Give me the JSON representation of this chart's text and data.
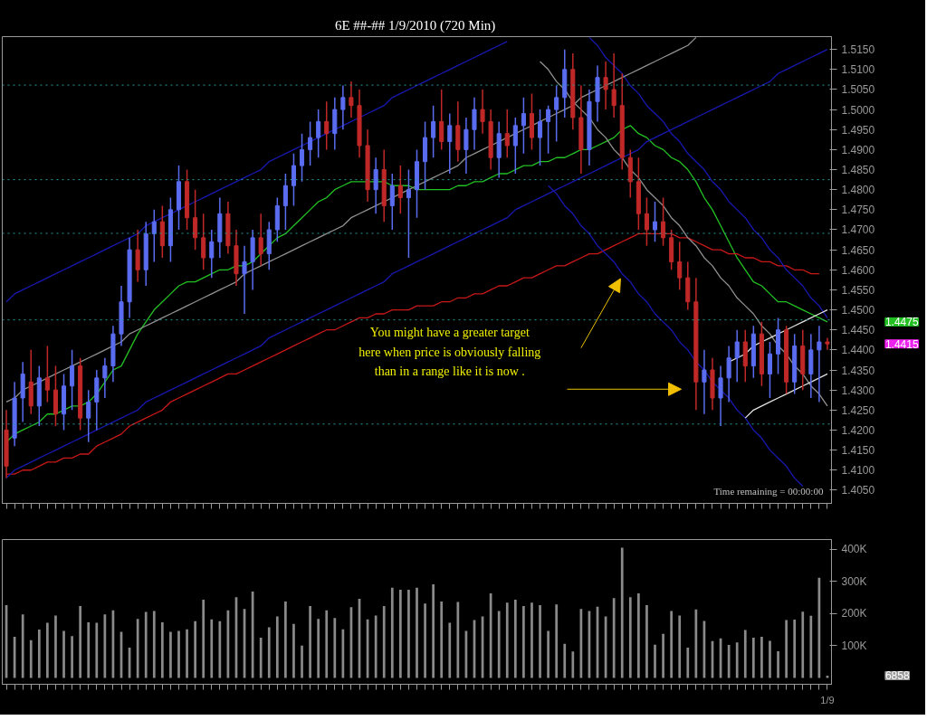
{
  "chart_data": [
    {
      "type": "candlestick",
      "title": "6E ##-##  1/9/2010 (720 Min)",
      "tick_labels": "y",
      "categories": [
        null,
        null,
        null,
        null,
        null,
        null,
        null,
        null,
        null,
        null,
        null,
        null,
        null,
        null,
        null,
        null,
        null,
        null,
        null,
        null,
        null,
        null,
        null,
        null,
        null,
        null,
        null,
        null,
        null,
        null,
        null,
        null,
        null,
        null,
        null,
        null,
        null,
        null,
        null,
        null,
        null,
        null,
        null,
        null,
        null,
        null,
        null,
        null,
        null,
        null,
        null,
        null,
        null,
        null,
        null,
        null,
        null,
        null,
        null,
        null,
        null,
        null,
        null,
        null,
        null,
        null,
        null,
        null,
        null,
        null,
        null,
        null,
        null,
        null,
        null,
        null,
        null,
        null,
        null,
        null,
        null,
        null,
        null,
        null,
        null,
        null,
        null,
        null,
        null,
        null,
        null,
        null,
        null,
        null,
        null,
        null,
        null,
        null,
        null,
        null,
        null
      ],
      "ohlc": [
        [
          1.42,
          1.425,
          1.408,
          1.411
        ],
        [
          1.418,
          1.432,
          1.416,
          1.428
        ],
        [
          1.428,
          1.437,
          1.422,
          1.434
        ],
        [
          1.432,
          1.44,
          1.424,
          1.426
        ],
        [
          1.426,
          1.436,
          1.421,
          1.433
        ],
        [
          1.433,
          1.441,
          1.427,
          1.43
        ],
        [
          1.43,
          1.436,
          1.421,
          1.424
        ],
        [
          1.424,
          1.434,
          1.42,
          1.431
        ],
        [
          1.431,
          1.44,
          1.425,
          1.436
        ],
        [
          1.436,
          1.438,
          1.42,
          1.423
        ],
        [
          1.423,
          1.43,
          1.417,
          1.427
        ],
        [
          1.427,
          1.435,
          1.42,
          1.433
        ],
        [
          1.433,
          1.438,
          1.428,
          1.436
        ],
        [
          1.436,
          1.446,
          1.432,
          1.444
        ],
        [
          1.444,
          1.456,
          1.441,
          1.452
        ],
        [
          1.452,
          1.468,
          1.448,
          1.465
        ],
        [
          1.465,
          1.47,
          1.457,
          1.46
        ],
        [
          1.46,
          1.472,
          1.456,
          1.469
        ],
        [
          1.469,
          1.475,
          1.462,
          1.472
        ],
        [
          1.472,
          1.476,
          1.463,
          1.466
        ],
        [
          1.466,
          1.478,
          1.462,
          1.475
        ],
        [
          1.475,
          1.486,
          1.47,
          1.482
        ],
        [
          1.482,
          1.485,
          1.47,
          1.473
        ],
        [
          1.473,
          1.48,
          1.465,
          1.468
        ],
        [
          1.468,
          1.474,
          1.46,
          1.463
        ],
        [
          1.463,
          1.47,
          1.458,
          1.467
        ],
        [
          1.467,
          1.478,
          1.463,
          1.474
        ],
        [
          1.474,
          1.477,
          1.464,
          1.466
        ],
        [
          1.466,
          1.47,
          1.456,
          1.459
        ],
        [
          1.459,
          1.466,
          1.449,
          1.462
        ],
        [
          1.462,
          1.47,
          1.455,
          1.468
        ],
        [
          1.468,
          1.474,
          1.461,
          1.464
        ],
        [
          1.464,
          1.472,
          1.46,
          1.47
        ],
        [
          1.47,
          1.478,
          1.467,
          1.476
        ],
        [
          1.476,
          1.484,
          1.47,
          1.481
        ],
        [
          1.481,
          1.489,
          1.476,
          1.486
        ],
        [
          1.486,
          1.494,
          1.482,
          1.49
        ],
        [
          1.49,
          1.497,
          1.486,
          1.493
        ],
        [
          1.493,
          1.5,
          1.488,
          1.497
        ],
        [
          1.497,
          1.502,
          1.49,
          1.494
        ],
        [
          1.494,
          1.503,
          1.49,
          1.5
        ],
        [
          1.5,
          1.506,
          1.495,
          1.503
        ],
        [
          1.503,
          1.507,
          1.498,
          1.501
        ],
        [
          1.501,
          1.505,
          1.488,
          1.491
        ],
        [
          1.491,
          1.495,
          1.477,
          1.48
        ],
        [
          1.48,
          1.488,
          1.474,
          1.485
        ],
        [
          1.485,
          1.49,
          1.472,
          1.476
        ],
        [
          1.476,
          1.484,
          1.47,
          1.481
        ],
        [
          1.481,
          1.486,
          1.474,
          1.478
        ],
        [
          1.478,
          1.485,
          1.463,
          1.48
        ],
        [
          1.48,
          1.49,
          1.473,
          1.487
        ],
        [
          1.487,
          1.497,
          1.48,
          1.493
        ],
        [
          1.493,
          1.501,
          1.488,
          1.497
        ],
        [
          1.497,
          1.505,
          1.49,
          1.492
        ],
        [
          1.492,
          1.499,
          1.484,
          1.496
        ],
        [
          1.496,
          1.502,
          1.487,
          1.49
        ],
        [
          1.49,
          1.498,
          1.484,
          1.495
        ],
        [
          1.495,
          1.503,
          1.49,
          1.5
        ],
        [
          1.5,
          1.505,
          1.494,
          1.497
        ],
        [
          1.497,
          1.5,
          1.485,
          1.488
        ],
        [
          1.488,
          1.497,
          1.483,
          1.494
        ],
        [
          1.494,
          1.5,
          1.488,
          1.491
        ],
        [
          1.491,
          1.498,
          1.484,
          1.496
        ],
        [
          1.496,
          1.503,
          1.489,
          1.499
        ],
        [
          1.499,
          1.504,
          1.49,
          1.493
        ],
        [
          1.493,
          1.5,
          1.486,
          1.497
        ],
        [
          1.497,
          1.501,
          1.489,
          1.5
        ],
        [
          1.5,
          1.506,
          1.492,
          1.503
        ],
        [
          1.503,
          1.515,
          1.498,
          1.51
        ],
        [
          1.51,
          1.514,
          1.495,
          1.498
        ],
        [
          1.498,
          1.506,
          1.484,
          1.49
        ],
        [
          1.49,
          1.505,
          1.486,
          1.502
        ],
        [
          1.502,
          1.511,
          1.497,
          1.508
        ],
        [
          1.508,
          1.512,
          1.5,
          1.505
        ],
        [
          1.505,
          1.514,
          1.498,
          1.501
        ],
        [
          1.501,
          1.509,
          1.485,
          1.488
        ],
        [
          1.488,
          1.49,
          1.478,
          1.482
        ],
        [
          1.482,
          1.488,
          1.47,
          1.474
        ],
        [
          1.474,
          1.478,
          1.466,
          1.47
        ],
        [
          1.47,
          1.477,
          1.467,
          1.472
        ],
        [
          1.472,
          1.478,
          1.466,
          1.468
        ],
        [
          1.468,
          1.47,
          1.46,
          1.462
        ],
        [
          1.462,
          1.467,
          1.455,
          1.458
        ],
        [
          1.458,
          1.462,
          1.45,
          1.452
        ],
        [
          1.452,
          1.458,
          1.425,
          1.432
        ],
        [
          1.432,
          1.44,
          1.424,
          1.435
        ],
        [
          1.435,
          1.438,
          1.425,
          1.428
        ],
        [
          1.428,
          1.436,
          1.421,
          1.433
        ],
        [
          1.433,
          1.441,
          1.427,
          1.438
        ],
        [
          1.438,
          1.445,
          1.432,
          1.442
        ],
        [
          1.442,
          1.445,
          1.432,
          1.436
        ],
        [
          1.436,
          1.446,
          1.433,
          1.444
        ],
        [
          1.444,
          1.447,
          1.431,
          1.434
        ],
        [
          1.434,
          1.442,
          1.428,
          1.439
        ],
        [
          1.439,
          1.448,
          1.434,
          1.445
        ],
        [
          1.445,
          1.446,
          1.429,
          1.432
        ],
        [
          1.432,
          1.444,
          1.429,
          1.441
        ],
        [
          1.441,
          1.445,
          1.43,
          1.434
        ],
        [
          1.434,
          1.444,
          1.428,
          1.44
        ],
        [
          1.44,
          1.446,
          1.427,
          1.442
        ],
        [
          1.442,
          1.443,
          1.44,
          1.4415
        ]
      ],
      "series": [
        {
          "type": "line",
          "color": "#22c022",
          "values": [
            1.417,
            1.419,
            1.42,
            1.421,
            1.422,
            1.424,
            1.424,
            1.425,
            1.426,
            1.426,
            1.427,
            1.429,
            1.432,
            1.435,
            1.436,
            1.44,
            1.444,
            1.447,
            1.45,
            1.452,
            1.454,
            1.456,
            1.457,
            1.457,
            1.458,
            1.459,
            1.46,
            1.46,
            1.461,
            1.461,
            1.462,
            1.464,
            1.466,
            1.468,
            1.469,
            1.471,
            1.473,
            1.475,
            1.477,
            1.478,
            1.48,
            1.481,
            1.482,
            1.482,
            1.482,
            1.482,
            1.482,
            1.481,
            1.481,
            1.481,
            1.48,
            1.48,
            1.48,
            1.48,
            1.48,
            1.481,
            1.481,
            1.482,
            1.482,
            1.483,
            1.484,
            1.484,
            1.485,
            1.486,
            1.486,
            1.487,
            1.487,
            1.488,
            1.488,
            1.489,
            1.49,
            1.49,
            1.491,
            1.492,
            1.493,
            1.495,
            1.496,
            1.494,
            1.493,
            1.491,
            1.49,
            1.488,
            1.487,
            1.485,
            1.482,
            1.478,
            1.475,
            1.471,
            1.467,
            1.463,
            1.46,
            1.457,
            1.456,
            1.454,
            1.452,
            1.452,
            1.451,
            1.45,
            1.449,
            1.448,
            1.447
          ]
        },
        {
          "type": "line",
          "color": "#c81818",
          "values": [
            1.409,
            1.409,
            1.41,
            1.41,
            1.411,
            1.412,
            1.412,
            1.413,
            1.413,
            1.414,
            1.414,
            1.416,
            1.417,
            1.418,
            1.419,
            1.421,
            1.422,
            1.423,
            1.424,
            1.425,
            1.427,
            1.428,
            1.429,
            1.43,
            1.431,
            1.432,
            1.433,
            1.434,
            1.434,
            1.435,
            1.436,
            1.437,
            1.438,
            1.439,
            1.44,
            1.441,
            1.442,
            1.443,
            1.444,
            1.445,
            1.445,
            1.446,
            1.447,
            1.448,
            1.448,
            1.449,
            1.449,
            1.45,
            1.45,
            1.45,
            1.451,
            1.451,
            1.451,
            1.452,
            1.452,
            1.453,
            1.453,
            1.454,
            1.454,
            1.455,
            1.456,
            1.456,
            1.457,
            1.458,
            1.458,
            1.459,
            1.46,
            1.461,
            1.461,
            1.462,
            1.463,
            1.464,
            1.464,
            1.465,
            1.466,
            1.467,
            1.468,
            1.469,
            1.469,
            1.469,
            1.469,
            1.469,
            1.468,
            1.468,
            1.467,
            1.466,
            1.465,
            1.465,
            1.464,
            1.464,
            1.463,
            1.463,
            1.462,
            1.462,
            1.461,
            1.461,
            1.46,
            1.46,
            1.459,
            1.459,
            null
          ]
        },
        {
          "type": "line",
          "color": "#1818b0",
          "values": [
            1.452,
            1.454,
            1.455,
            1.456,
            1.457,
            1.458,
            1.459,
            1.46,
            1.461,
            1.462,
            1.463,
            1.464,
            1.465,
            1.466,
            1.467,
            1.468,
            1.469,
            1.471,
            1.472,
            1.473,
            1.474,
            1.475,
            1.476,
            1.477,
            1.478,
            1.479,
            1.48,
            1.481,
            1.482,
            1.483,
            1.484,
            1.485,
            1.487,
            1.488,
            1.489,
            1.49,
            1.491,
            1.492,
            1.493,
            1.494,
            1.495,
            1.496,
            1.497,
            1.498,
            1.499,
            1.5,
            1.501,
            1.503,
            1.504,
            1.505,
            1.506,
            1.507,
            1.508,
            1.509,
            1.51,
            1.511,
            1.512,
            1.513,
            1.514,
            1.515,
            1.516,
            1.517,
            null,
            null,
            null,
            null,
            null,
            null,
            null,
            null,
            null,
            null,
            null,
            null,
            null,
            null,
            null,
            null,
            null,
            null,
            null,
            null,
            null,
            null,
            null,
            null,
            null,
            null,
            null,
            null,
            null,
            null,
            null,
            null,
            null,
            null,
            null,
            null,
            null,
            null,
            null
          ]
        },
        {
          "type": "line",
          "color": "#1818b0",
          "values": [
            1.408,
            1.41,
            1.411,
            1.412,
            1.413,
            1.414,
            1.415,
            1.416,
            1.417,
            1.418,
            1.419,
            1.42,
            1.421,
            1.422,
            1.423,
            1.424,
            1.425,
            1.427,
            1.428,
            1.429,
            1.43,
            1.431,
            1.432,
            1.433,
            1.434,
            1.435,
            1.436,
            1.437,
            1.438,
            1.439,
            1.44,
            1.441,
            1.443,
            1.444,
            1.445,
            1.446,
            1.447,
            1.448,
            1.449,
            1.45,
            1.451,
            1.452,
            1.453,
            1.454,
            1.455,
            1.456,
            1.457,
            1.459,
            1.46,
            1.461,
            1.462,
            1.463,
            1.464,
            1.465,
            1.466,
            1.467,
            1.468,
            1.469,
            1.47,
            1.471,
            1.472,
            1.473,
            1.475,
            1.476,
            1.477,
            1.478,
            1.479,
            1.48,
            1.481,
            1.482,
            1.483,
            1.484,
            1.485,
            1.486,
            1.487,
            1.488,
            1.489,
            1.49,
            1.492,
            1.493,
            1.494,
            1.495,
            1.496,
            1.497,
            1.498,
            1.499,
            1.5,
            1.501,
            1.502,
            1.503,
            1.504,
            1.505,
            1.506,
            1.507,
            1.509,
            1.51,
            1.511,
            1.512,
            1.513,
            1.514,
            1.515
          ]
        },
        {
          "type": "line",
          "color": "#1818b0",
          "values": [
            null,
            null,
            null,
            null,
            null,
            null,
            null,
            null,
            null,
            null,
            null,
            null,
            null,
            null,
            null,
            null,
            null,
            null,
            null,
            null,
            null,
            null,
            null,
            null,
            null,
            null,
            null,
            null,
            null,
            null,
            null,
            null,
            null,
            null,
            null,
            null,
            null,
            null,
            null,
            null,
            null,
            null,
            null,
            null,
            null,
            null,
            null,
            null,
            null,
            null,
            null,
            null,
            null,
            null,
            null,
            null,
            null,
            null,
            null,
            null,
            null,
            null,
            null,
            null,
            null,
            null,
            null,
            null,
            null,
            null,
            null,
            1.518,
            1.516,
            1.513,
            1.511,
            1.509,
            1.506,
            1.504,
            1.501,
            1.499,
            1.497,
            1.494,
            1.492,
            1.489,
            1.487,
            1.485,
            1.482,
            1.48,
            1.477,
            1.475,
            1.473,
            1.47,
            1.468,
            1.465,
            1.463,
            1.46,
            1.458,
            1.456,
            1.453,
            1.451,
            1.448
          ]
        },
        {
          "type": "line",
          "color": "#1818b0",
          "values": [
            null,
            null,
            null,
            null,
            null,
            null,
            null,
            null,
            null,
            null,
            null,
            null,
            null,
            null,
            null,
            null,
            null,
            null,
            null,
            null,
            null,
            null,
            null,
            null,
            null,
            null,
            null,
            null,
            null,
            null,
            null,
            null,
            null,
            null,
            null,
            null,
            null,
            null,
            null,
            null,
            null,
            null,
            null,
            null,
            null,
            null,
            null,
            null,
            null,
            null,
            null,
            null,
            null,
            null,
            null,
            null,
            null,
            null,
            null,
            null,
            null,
            null,
            null,
            null,
            null,
            null,
            1.481,
            1.479,
            1.476,
            1.474,
            1.471,
            1.469,
            1.466,
            1.464,
            1.462,
            1.459,
            1.457,
            1.454,
            1.452,
            1.449,
            1.447,
            1.445,
            1.442,
            1.44,
            1.437,
            1.435,
            1.432,
            1.43,
            1.428,
            1.425,
            1.423,
            1.42,
            1.418,
            1.415,
            1.413,
            1.411,
            1.408,
            1.406,
            null,
            null,
            null
          ]
        },
        {
          "type": "line",
          "color": "#909090",
          "values": [
            1.427,
            1.428,
            1.43,
            1.431,
            1.432,
            1.433,
            1.434,
            1.435,
            1.436,
            1.437,
            1.438,
            1.439,
            1.44,
            1.441,
            1.442,
            1.444,
            1.445,
            1.446,
            1.447,
            1.448,
            1.449,
            1.45,
            1.451,
            1.452,
            1.453,
            1.454,
            1.455,
            1.456,
            1.457,
            1.459,
            1.46,
            1.461,
            1.462,
            1.463,
            1.464,
            1.465,
            1.466,
            1.467,
            1.468,
            1.469,
            1.47,
            1.471,
            1.473,
            1.474,
            1.475,
            1.476,
            1.477,
            1.478,
            1.479,
            1.48,
            1.481,
            1.482,
            1.483,
            1.484,
            1.485,
            1.486,
            1.488,
            1.489,
            1.49,
            1.491,
            1.492,
            1.493,
            1.494,
            1.495,
            1.496,
            1.497,
            1.498,
            1.499,
            1.5,
            1.501,
            1.503,
            1.504,
            1.505,
            1.506,
            1.507,
            1.508,
            1.509,
            1.51,
            1.511,
            1.512,
            1.513,
            1.514,
            1.515,
            1.516,
            1.518,
            null,
            null,
            null,
            null,
            null,
            null,
            null,
            null,
            null,
            null,
            null,
            null,
            null,
            null,
            null,
            null
          ]
        },
        {
          "type": "line",
          "color": "#909090",
          "values": [
            null,
            null,
            null,
            null,
            null,
            null,
            null,
            null,
            null,
            null,
            null,
            null,
            null,
            null,
            null,
            null,
            null,
            null,
            null,
            null,
            null,
            null,
            null,
            null,
            null,
            null,
            null,
            null,
            null,
            null,
            null,
            null,
            null,
            null,
            null,
            null,
            null,
            null,
            null,
            null,
            null,
            null,
            null,
            null,
            null,
            null,
            null,
            null,
            null,
            null,
            null,
            null,
            null,
            null,
            null,
            null,
            null,
            null,
            null,
            null,
            null,
            null,
            null,
            null,
            null,
            1.512,
            1.51,
            1.507,
            1.505,
            1.502,
            1.5,
            1.498,
            1.495,
            1.493,
            1.49,
            1.488,
            1.485,
            1.483,
            1.48,
            1.478,
            1.476,
            1.473,
            1.471,
            1.468,
            1.466,
            1.463,
            1.461,
            1.458,
            1.456,
            1.453,
            1.451,
            1.449,
            1.446,
            1.444,
            1.441,
            1.439,
            1.436,
            1.434,
            1.431,
            1.429,
            1.426
          ]
        },
        {
          "type": "line",
          "color": "#e0e0e0",
          "values": [
            null,
            null,
            null,
            null,
            null,
            null,
            null,
            null,
            null,
            null,
            null,
            null,
            null,
            null,
            null,
            null,
            null,
            null,
            null,
            null,
            null,
            null,
            null,
            null,
            null,
            null,
            null,
            null,
            null,
            null,
            null,
            null,
            null,
            null,
            null,
            null,
            null,
            null,
            null,
            null,
            null,
            null,
            null,
            null,
            null,
            null,
            null,
            null,
            null,
            null,
            null,
            null,
            null,
            null,
            null,
            null,
            null,
            null,
            null,
            null,
            null,
            null,
            null,
            null,
            null,
            null,
            null,
            null,
            null,
            null,
            null,
            null,
            null,
            null,
            null,
            null,
            null,
            null,
            null,
            null,
            null,
            null,
            null,
            null,
            null,
            null,
            null,
            null,
            1.437,
            1.438,
            1.439,
            1.441,
            1.442,
            1.443,
            1.444,
            1.445,
            1.446,
            1.447,
            1.448,
            1.449,
            1.45
          ]
        },
        {
          "type": "line",
          "color": "#e0e0e0",
          "values": [
            null,
            null,
            null,
            null,
            null,
            null,
            null,
            null,
            null,
            null,
            null,
            null,
            null,
            null,
            null,
            null,
            null,
            null,
            null,
            null,
            null,
            null,
            null,
            null,
            null,
            null,
            null,
            null,
            null,
            null,
            null,
            null,
            null,
            null,
            null,
            null,
            null,
            null,
            null,
            null,
            null,
            null,
            null,
            null,
            null,
            null,
            null,
            null,
            null,
            null,
            null,
            null,
            null,
            null,
            null,
            null,
            null,
            null,
            null,
            null,
            null,
            null,
            null,
            null,
            null,
            null,
            null,
            null,
            null,
            null,
            null,
            null,
            null,
            null,
            null,
            null,
            null,
            null,
            null,
            null,
            null,
            null,
            null,
            null,
            null,
            null,
            null,
            null,
            null,
            null,
            1.423,
            1.425,
            1.426,
            1.427,
            1.428,
            1.429,
            1.43,
            1.431,
            1.432,
            1.433,
            1.434
          ]
        }
      ],
      "ref_lines": [
        {
          "axis": "y",
          "value": 1.5061,
          "color": "#2a9a9a",
          "line_style": "dotted"
        },
        {
          "axis": "y",
          "value": 1.4825,
          "color": "#2a9a9a",
          "line_style": "dotted"
        },
        {
          "axis": "y",
          "value": 1.4691,
          "color": "#2a9a9a",
          "line_style": "dotted"
        },
        {
          "axis": "y",
          "value": 1.4475,
          "color": "#2a9a9a",
          "line_style": "dotted"
        },
        {
          "axis": "y",
          "value": 1.4215,
          "color": "#2a9a9a",
          "line_style": "dotted"
        }
      ],
      "annotations": [
        "You might have a greater target\nhere when price is obviously falling\nthan in a range like it is now .",
        "Time remaining = 00:00:00",
        "1.4475",
        "1.4415"
      ],
      "ylim": [
        1.4017,
        1.5182
      ],
      "yticks": [
        {
          "value": 1.405,
          "label": "1.4050"
        },
        {
          "value": 1.41,
          "label": "1.4100"
        },
        {
          "value": 1.415,
          "label": "1.4150"
        },
        {
          "value": 1.42,
          "label": "1.4200"
        },
        {
          "value": 1.425,
          "label": "1.4250"
        },
        {
          "value": 1.43,
          "label": "1.4300"
        },
        {
          "value": 1.435,
          "label": "1.4350"
        },
        {
          "value": 1.44,
          "label": "1.4400"
        },
        {
          "value": 1.445,
          "label": "1.4450"
        },
        {
          "value": 1.45,
          "label": "1.4500"
        },
        {
          "value": 1.455,
          "label": "1.4550"
        },
        {
          "value": 1.46,
          "label": "1.4600"
        },
        {
          "value": 1.465,
          "label": "1.4650"
        },
        {
          "value": 1.47,
          "label": "1.4700"
        },
        {
          "value": 1.475,
          "label": "1.4750"
        },
        {
          "value": 1.48,
          "label": "1.4800"
        },
        {
          "value": 1.485,
          "label": "1.4850"
        },
        {
          "value": 1.49,
          "label": "1.4900"
        },
        {
          "value": 1.495,
          "label": "1.4950"
        },
        {
          "value": 1.5,
          "label": "1.5000"
        },
        {
          "value": 1.505,
          "label": "1.5050"
        },
        {
          "value": 1.51,
          "label": "1.5100"
        },
        {
          "value": 1.515,
          "label": "1.5150"
        }
      ]
    },
    {
      "type": "bar",
      "color": "#8a8a8a",
      "categories": [
        null,
        null,
        null,
        null,
        null,
        null,
        null,
        null,
        null,
        null,
        null,
        null,
        null,
        null,
        null,
        null,
        null,
        null,
        null,
        null,
        null,
        null,
        null,
        null,
        null,
        null,
        null,
        null,
        null,
        null,
        null,
        null,
        null,
        null,
        null,
        null,
        null,
        null,
        null,
        null,
        null,
        null,
        null,
        null,
        null,
        null,
        null,
        null,
        null,
        null,
        null,
        null,
        null,
        null,
        null,
        null,
        null,
        null,
        null,
        null,
        null,
        null,
        null,
        null,
        null,
        null,
        null,
        null,
        null,
        null,
        null,
        null,
        null,
        null,
        null,
        null,
        null,
        null,
        null,
        null,
        null,
        null,
        null,
        null,
        null,
        null,
        null,
        null,
        null,
        null,
        null,
        null,
        null,
        null,
        null,
        null,
        null,
        null,
        null,
        null,
        "1/9"
      ],
      "values": [
        226000,
        128000,
        197000,
        117000,
        150000,
        171000,
        194000,
        146000,
        130000,
        223000,
        173000,
        171000,
        197000,
        210000,
        143000,
        94000,
        183000,
        205000,
        208000,
        173000,
        143000,
        146000,
        151000,
        176000,
        243000,
        182000,
        176000,
        210000,
        251000,
        214000,
        268000,
        125000,
        157000,
        191000,
        237000,
        168000,
        100000,
        223000,
        183000,
        210000,
        186000,
        151000,
        220000,
        246000,
        182000,
        194000,
        223000,
        280000,
        274000,
        274000,
        280000,
        231000,
        291000,
        237000,
        171000,
        236000,
        146000,
        180000,
        191000,
        263000,
        208000,
        234000,
        243000,
        223000,
        234000,
        226000,
        146000,
        228000,
        106000,
        82000,
        214000,
        208000,
        221000,
        191000,
        248000,
        405000,
        251000,
        263000,
        226000,
        103000,
        137000,
        208000,
        194000,
        94000,
        213000,
        177000,
        114000,
        123000,
        102000,
        110000,
        149000,
        125000,
        128000,
        115000,
        83000,
        180000,
        181000,
        206000,
        193000,
        311000,
        6858
      ],
      "annotations": [
        "6858"
      ],
      "ylim": [
        -20000,
        430000
      ],
      "yticks": [
        {
          "value": 100000,
          "label": "100K"
        },
        {
          "value": 200000,
          "label": "200K"
        },
        {
          "value": 300000,
          "label": "300K"
        },
        {
          "value": 400000,
          "label": "400K"
        }
      ]
    }
  ]
}
